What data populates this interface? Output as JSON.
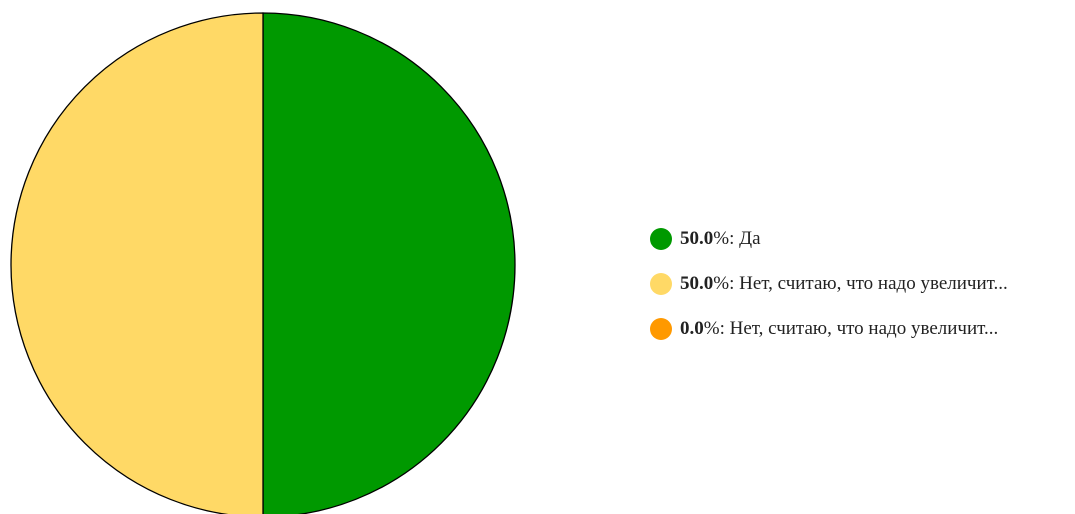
{
  "chart_data": {
    "type": "pie",
    "slices": [
      {
        "value": 50.0,
        "percent_label": "50.0",
        "label": "Да",
        "color": "#009900"
      },
      {
        "value": 50.0,
        "percent_label": "50.0",
        "label": "Нет, считаю, что надо увеличит...",
        "color": "#ffd966"
      },
      {
        "value": 0.0,
        "percent_label": "0.0",
        "label": "Нет, считаю, что надо увеличит...",
        "color": "#ff9900"
      }
    ],
    "legend_position": "right",
    "percent_unit": "%",
    "separator": ": "
  }
}
